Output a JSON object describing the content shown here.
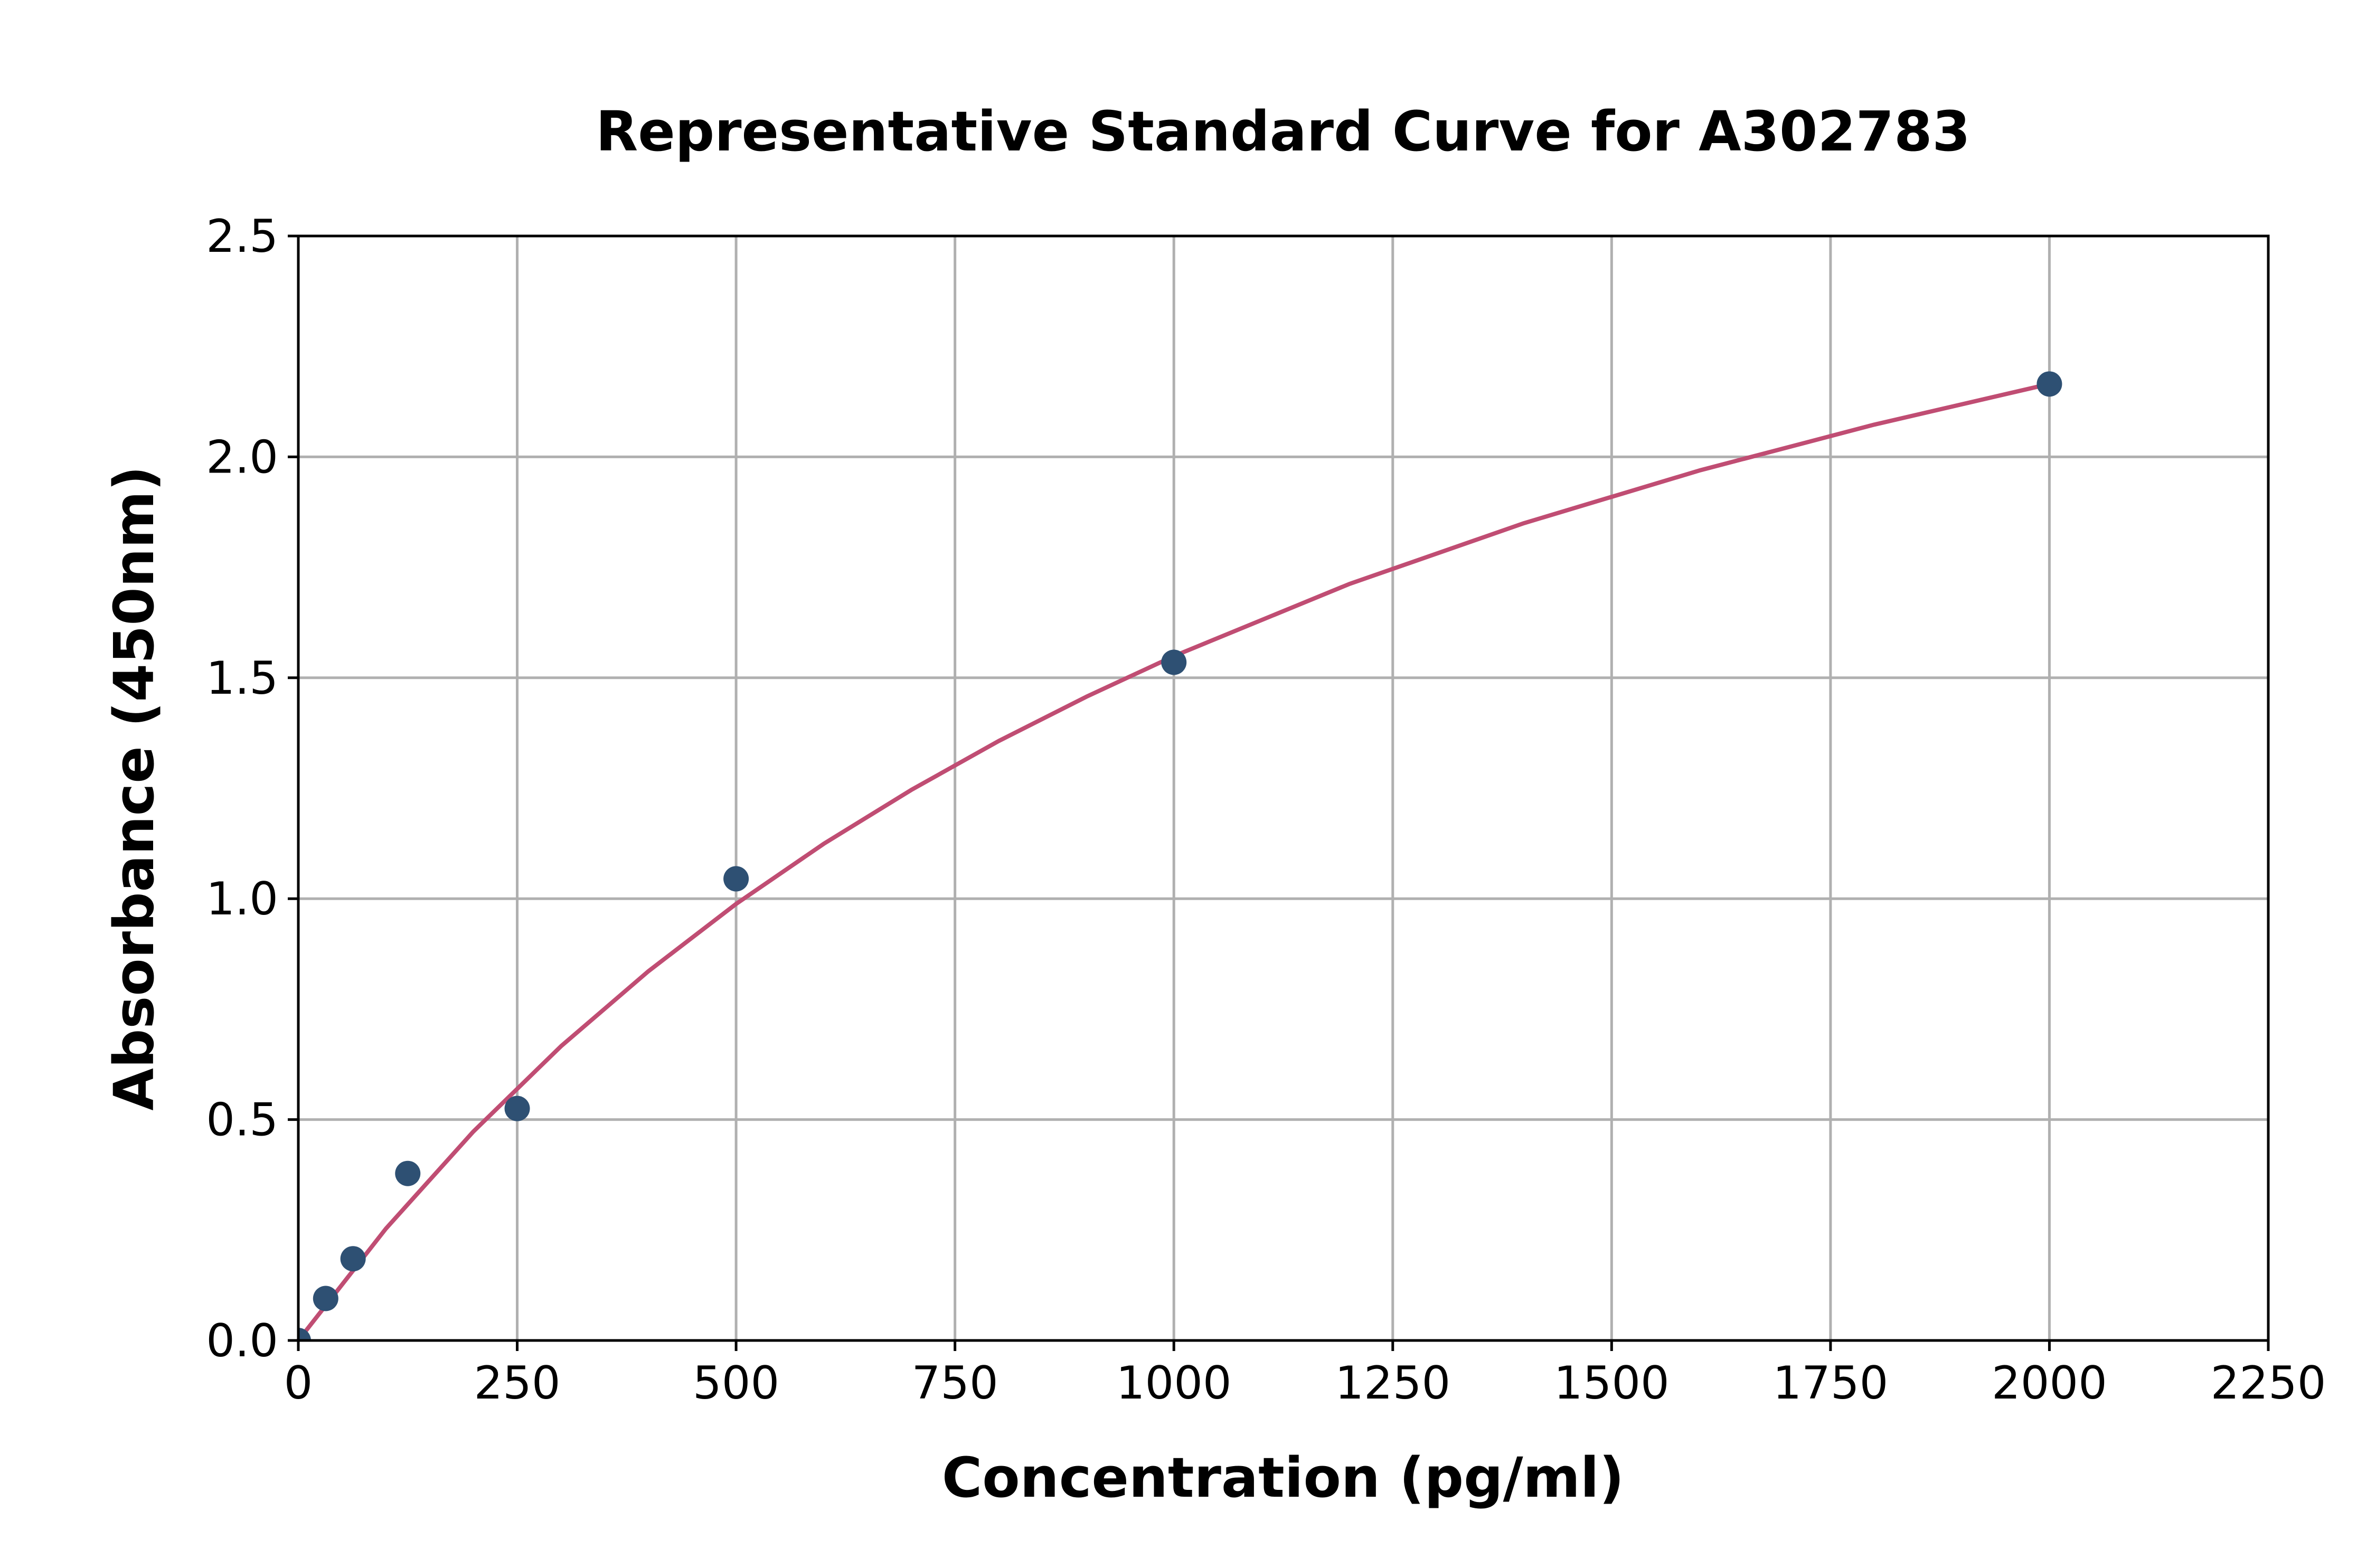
{
  "chart_data": {
    "type": "scatter",
    "title": "Representative Standard Curve for A302783",
    "xlabel": "Concentration (pg/ml)",
    "ylabel": "Absorbance (450nm)",
    "xlim": [
      0,
      2250
    ],
    "ylim": [
      0,
      2.5
    ],
    "xticks": [
      "0",
      "250",
      "500",
      "750",
      "1000",
      "1250",
      "1500",
      "1750",
      "2000",
      "2250"
    ],
    "yticks": [
      "0.0",
      "0.5",
      "1.0",
      "1.5",
      "2.0",
      "2.5"
    ],
    "grid": true,
    "points": {
      "x": [
        0,
        31.25,
        62.5,
        125,
        250,
        500,
        1000,
        2000
      ],
      "y": [
        0.0,
        0.095,
        0.185,
        0.378,
        0.525,
        1.045,
        1.535,
        2.165
      ],
      "color": "#2e5073"
    },
    "fit_curve": {
      "x": [
        0,
        100,
        200,
        300,
        400,
        500,
        600,
        700,
        800,
        900,
        1000,
        1200,
        1400,
        1600,
        1800,
        2000
      ],
      "y": [
        0,
        0.253,
        0.473,
        0.666,
        0.836,
        0.988,
        1.124,
        1.246,
        1.357,
        1.457,
        1.549,
        1.712,
        1.85,
        1.969,
        2.073,
        2.165
      ],
      "color": "#c04d73"
    }
  }
}
